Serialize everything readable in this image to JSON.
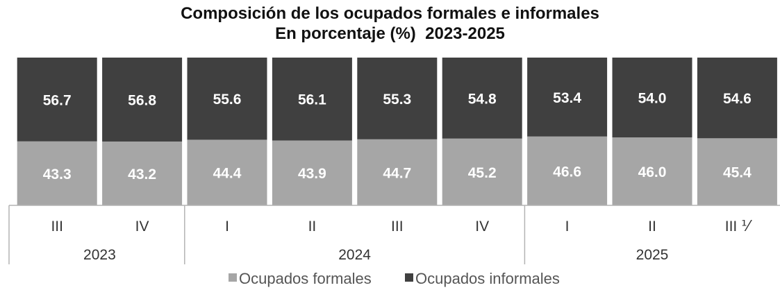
{
  "chart_data": {
    "type": "bar",
    "stacked": true,
    "title": "Composición de los ocupados formales e informales",
    "subtitle_left": "En porcentaje (%)",
    "subtitle_right": "2023-2025",
    "categories": [
      "III",
      "IV",
      "I",
      "II",
      "III",
      "IV",
      "I",
      "II",
      "III ⅟"
    ],
    "groups": [
      {
        "label": "2023",
        "count": 2
      },
      {
        "label": "2024",
        "count": 4
      },
      {
        "label": "2025",
        "count": 3
      }
    ],
    "series": [
      {
        "name": "Ocupados formales",
        "color": "#a6a6a6",
        "values": [
          43.3,
          43.2,
          44.4,
          43.9,
          44.7,
          45.2,
          46.6,
          46.0,
          45.4
        ],
        "labels": [
          "43.3",
          "43.2",
          "44.4",
          "43.9",
          "44.7",
          "45.2",
          "46.6",
          "46.0",
          "45.4"
        ]
      },
      {
        "name": "Ocupados informales",
        "color": "#404040",
        "values": [
          56.7,
          56.8,
          55.6,
          56.1,
          55.3,
          54.8,
          53.4,
          54.0,
          54.6
        ],
        "labels": [
          "56.7",
          "56.8",
          "55.6",
          "56.1",
          "55.3",
          "54.8",
          "53.4",
          "54.0",
          "54.6"
        ]
      }
    ],
    "ylim": [
      0,
      100
    ],
    "legend_position": "bottom-center",
    "grid": false
  }
}
